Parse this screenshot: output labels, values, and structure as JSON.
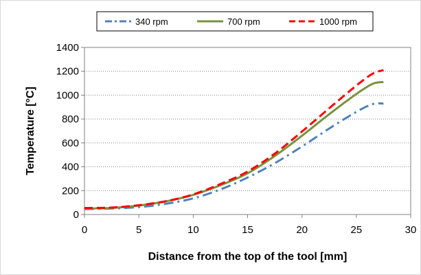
{
  "chart_data": {
    "type": "line",
    "title": "",
    "xlabel": "Distance from the top of the tool [mm]",
    "ylabel": "Temperature [°C]",
    "xlim": [
      0,
      30
    ],
    "ylim": [
      0,
      1400
    ],
    "xticks": [
      0,
      5,
      10,
      15,
      20,
      25,
      30
    ],
    "yticks": [
      0,
      200,
      400,
      600,
      800,
      1000,
      1200,
      1400
    ],
    "grid": "horizontal",
    "legend_position": "top",
    "series": [
      {
        "name": "340 rpm",
        "color": "#4f81bd",
        "style": "dash-dot",
        "x": [
          0,
          2.5,
          5,
          7.5,
          10,
          12.5,
          15,
          17.5,
          20,
          22.5,
          25,
          26.5,
          27.5
        ],
        "y": [
          45,
          50,
          62,
          90,
          135,
          210,
          310,
          430,
          570,
          720,
          860,
          925,
          930
        ]
      },
      {
        "name": "700 rpm",
        "color": "#77933c",
        "style": "solid",
        "x": [
          0,
          2.5,
          5,
          7.5,
          10,
          12.5,
          15,
          17.5,
          20,
          22.5,
          25,
          26.5,
          27.5
        ],
        "y": [
          50,
          55,
          75,
          110,
          165,
          245,
          345,
          490,
          660,
          840,
          1010,
          1095,
          1110
        ]
      },
      {
        "name": "1000 rpm",
        "color": "#ff0000",
        "style": "dashed",
        "x": [
          0,
          2.5,
          5,
          7.5,
          10,
          12.5,
          15,
          17.5,
          20,
          22.5,
          25,
          26.5,
          27.5
        ],
        "y": [
          55,
          58,
          78,
          112,
          168,
          255,
          360,
          510,
          695,
          890,
          1080,
          1180,
          1210
        ]
      }
    ]
  }
}
